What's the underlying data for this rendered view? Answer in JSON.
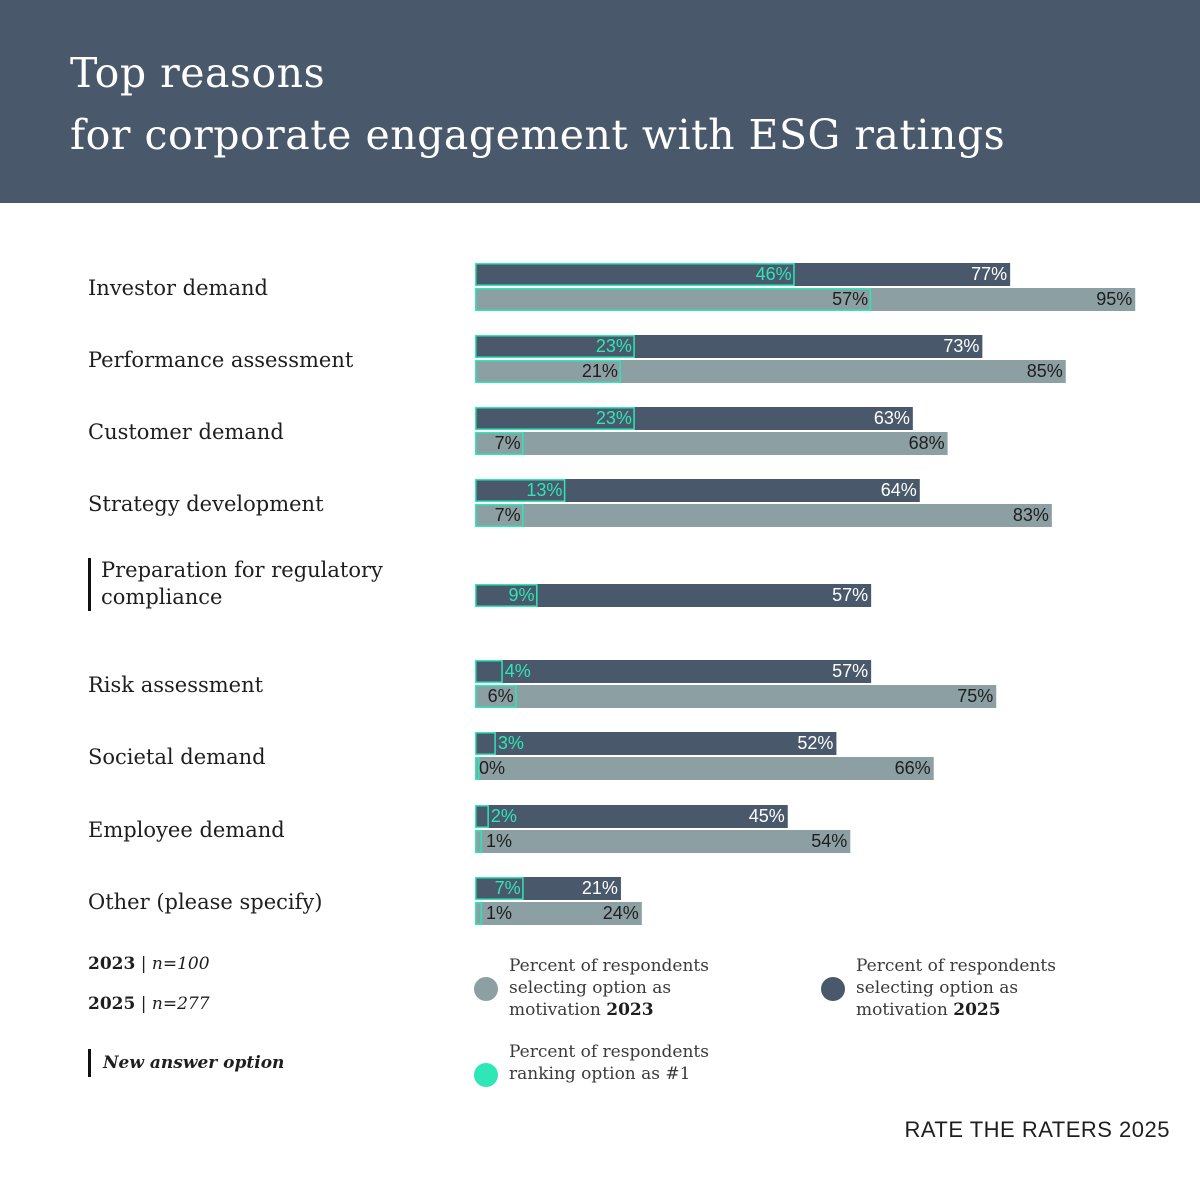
{
  "title": {
    "line1": "Top reasons",
    "line2": "for corporate engagement with ESG ratings"
  },
  "colors": {
    "bar_2025": "#49596b",
    "bar_2023": "#8c9fa2",
    "rank1": "#2ee6b6",
    "rank1_text": "#2ee6b6",
    "header_bg": "#49596b"
  },
  "chart_data": {
    "type": "bar",
    "orientation": "horizontal",
    "title": "Top reasons for corporate engagement with ESG ratings",
    "xlim": [
      0,
      100
    ],
    "unit": "%",
    "categories": [
      "Investor demand",
      "Performance assessment",
      "Customer demand",
      "Strategy development",
      "Preparation for regulatory compliance",
      "Risk assessment",
      "Societal demand",
      "Employee demand",
      "Other (please specify)"
    ],
    "new_option": [
      false,
      false,
      false,
      false,
      true,
      false,
      false,
      false,
      false
    ],
    "series": [
      {
        "name": "Percent of respondents selecting option as motivation 2025",
        "year": "2025",
        "values": [
          77,
          73,
          63,
          64,
          57,
          57,
          52,
          45,
          21
        ],
        "rank1": [
          46,
          23,
          23,
          13,
          9,
          4,
          3,
          2,
          7
        ]
      },
      {
        "name": "Percent of respondents selecting option as motivation 2023",
        "year": "2023",
        "values": [
          95,
          85,
          68,
          83,
          null,
          75,
          66,
          54,
          24
        ],
        "rank1": [
          57,
          21,
          7,
          7,
          null,
          6,
          0,
          1,
          1
        ]
      }
    ]
  },
  "legend": {
    "n2023_year": "2023",
    "n2023_sep": " | ",
    "n2023_n": "n=100",
    "n2025_year": "2025",
    "n2025_sep": " | ",
    "n2025_n": "n=277",
    "new_option": "New answer option",
    "item_2023_text": "Percent of respondents selecting option as motivation",
    "item_2023_year": "2023",
    "item_2025_text": "Percent of respondents selecting option as motivation",
    "item_2025_year": "2025",
    "item_rank_text": "Percent of respondents ranking option as #1"
  },
  "footer": "RATE THE RATERS 2025"
}
